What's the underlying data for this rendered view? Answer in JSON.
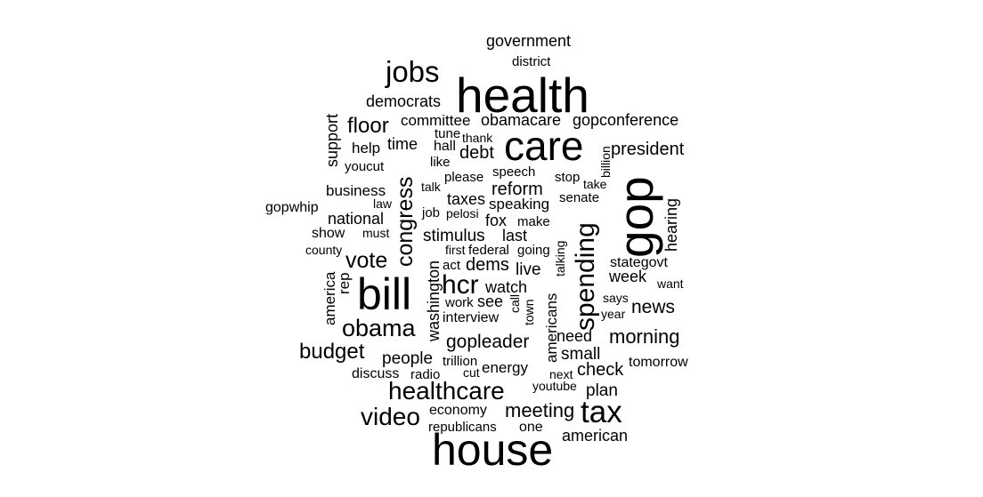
{
  "colors": {
    "background": "#ffffff",
    "text": "#000000"
  },
  "words": [
    "government",
    "district",
    "jobs",
    "health",
    "democrats",
    "floor",
    "committee",
    "obamacare",
    "gopconference",
    "support",
    "tune",
    "thank",
    "care",
    "president",
    "help",
    "time",
    "hall",
    "debt",
    "youcut",
    "like",
    "billion",
    "congress",
    "speech",
    "stop",
    "please",
    "business",
    "talk",
    "reform",
    "take",
    "gop",
    "law",
    "taxes",
    "speaking",
    "senate",
    "gopwhip",
    "job",
    "pelosi",
    "fox",
    "make",
    "national",
    "hearing",
    "spending",
    "show",
    "must",
    "stimulus",
    "last",
    "county",
    "first",
    "federal",
    "going",
    "talking",
    "vote",
    "dems",
    "stategovt",
    "act",
    "live",
    "america",
    "rep",
    "washington",
    "week",
    "bill",
    "hcr",
    "watch",
    "want",
    "work",
    "see",
    "call",
    "says",
    "americans",
    "news",
    "interview",
    "town",
    "year",
    "obama",
    "need",
    "morning",
    "gopleader",
    "budget",
    "people",
    "small",
    "trillion",
    "energy",
    "check",
    "tomorrow",
    "discuss",
    "radio",
    "cut",
    "next",
    "healthcare",
    "youtube",
    "plan",
    "video",
    "economy",
    "meeting",
    "tax",
    "republicans",
    "one",
    "american",
    "house"
  ]
}
